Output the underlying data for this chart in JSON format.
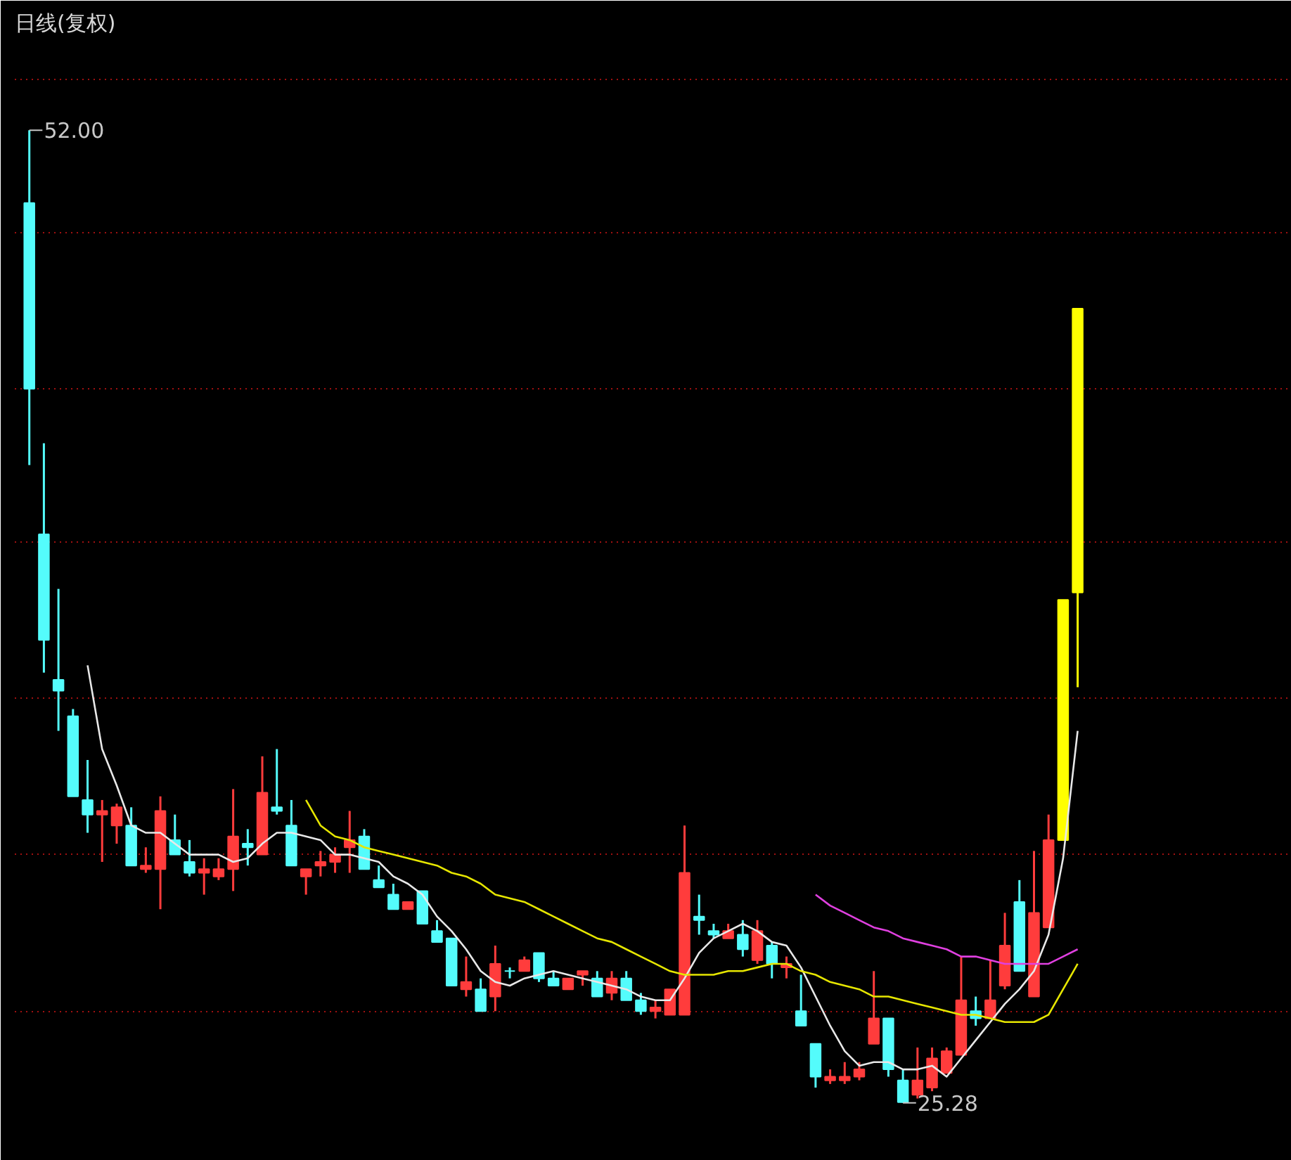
{
  "chart_data": {
    "type": "candlestick",
    "title": "日线(复权)",
    "categories": [
      null,
      null,
      null,
      null,
      null,
      null,
      null,
      null,
      null,
      null,
      null,
      null,
      null,
      null,
      null,
      null,
      null,
      null,
      null,
      null,
      null,
      null,
      null,
      null,
      null,
      null,
      null,
      null,
      null,
      null,
      null,
      null,
      null,
      null,
      null,
      null,
      null,
      null,
      null,
      null,
      null,
      null,
      null,
      null,
      null,
      null,
      null,
      null,
      null,
      null,
      null,
      null,
      null,
      null,
      null,
      null,
      null,
      null,
      null,
      null,
      null,
      null,
      null,
      null,
      null,
      null,
      null,
      null,
      null,
      null,
      null,
      null,
      null
    ],
    "ohlc": [
      [
        50.0,
        52.0,
        42.8,
        44.9
      ],
      [
        40.9,
        43.4,
        37.1,
        38.0
      ],
      [
        36.9,
        39.4,
        35.5,
        36.6
      ],
      [
        35.9,
        36.1,
        33.7,
        33.7
      ],
      [
        33.6,
        34.7,
        32.7,
        33.2
      ],
      [
        33.2,
        33.6,
        31.9,
        33.3
      ],
      [
        32.9,
        33.5,
        32.4,
        33.4
      ],
      [
        32.9,
        33.4,
        31.8,
        31.8
      ],
      [
        31.7,
        32.3,
        31.6,
        31.8
      ],
      [
        31.7,
        33.7,
        30.6,
        33.3
      ],
      [
        32.5,
        33.2,
        32.1,
        32.1
      ],
      [
        31.9,
        32.5,
        31.5,
        31.6
      ],
      [
        31.6,
        32.0,
        31.0,
        31.7
      ],
      [
        31.5,
        32.0,
        31.4,
        31.7
      ],
      [
        31.7,
        33.9,
        31.1,
        32.6
      ],
      [
        32.4,
        32.8,
        31.8,
        32.3
      ],
      [
        32.1,
        34.8,
        32.1,
        33.8
      ],
      [
        33.4,
        35.0,
        33.2,
        33.3
      ],
      [
        32.9,
        33.6,
        31.8,
        31.8
      ],
      [
        31.5,
        31.7,
        31.0,
        31.7
      ],
      [
        31.8,
        32.2,
        31.5,
        31.9
      ],
      [
        31.9,
        32.3,
        31.6,
        32.1
      ],
      [
        32.3,
        33.3,
        31.6,
        32.5
      ],
      [
        32.6,
        32.8,
        31.7,
        31.7
      ],
      [
        31.4,
        31.8,
        31.2,
        31.2
      ],
      [
        31.0,
        31.3,
        30.6,
        30.6
      ],
      [
        30.6,
        30.8,
        30.6,
        30.8
      ],
      [
        31.1,
        31.1,
        30.2,
        30.2
      ],
      [
        30.0,
        30.3,
        29.7,
        29.7
      ],
      [
        29.8,
        29.8,
        28.5,
        28.5
      ],
      [
        28.4,
        29.3,
        28.2,
        28.6
      ],
      [
        28.4,
        28.7,
        27.8,
        27.8
      ],
      [
        28.2,
        29.6,
        27.8,
        29.1
      ],
      [
        28.9,
        29.0,
        28.7,
        28.9
      ],
      [
        28.9,
        29.3,
        28.9,
        29.2
      ],
      [
        29.4,
        29.4,
        28.6,
        28.7
      ],
      [
        28.7,
        28.9,
        28.5,
        28.5
      ],
      [
        28.4,
        28.7,
        28.4,
        28.7
      ],
      [
        28.8,
        28.9,
        28.5,
        28.9
      ],
      [
        28.7,
        28.9,
        28.2,
        28.2
      ],
      [
        28.3,
        28.9,
        28.1,
        28.7
      ],
      [
        28.7,
        28.9,
        28.1,
        28.1
      ],
      [
        28.1,
        28.3,
        27.7,
        27.8
      ],
      [
        27.8,
        28.1,
        27.6,
        27.9
      ],
      [
        27.7,
        28.4,
        27.7,
        28.4
      ],
      [
        27.7,
        32.9,
        27.7,
        31.6
      ],
      [
        30.4,
        31.0,
        29.9,
        30.3
      ],
      [
        30.0,
        30.2,
        29.8,
        29.9
      ],
      [
        29.8,
        30.2,
        29.8,
        30.0
      ],
      [
        29.9,
        30.3,
        29.3,
        29.5
      ],
      [
        29.2,
        30.3,
        29.1,
        30.0
      ],
      [
        29.6,
        29.7,
        28.7,
        29.1
      ],
      [
        29.0,
        29.3,
        28.7,
        29.1
      ],
      [
        27.8,
        28.8,
        27.4,
        27.4
      ],
      [
        26.9,
        26.9,
        25.7,
        26.0
      ],
      [
        25.9,
        26.2,
        25.8,
        26.0
      ],
      [
        25.9,
        26.4,
        25.8,
        26.0
      ],
      [
        26.0,
        26.4,
        25.9,
        26.2
      ],
      [
        26.9,
        28.9,
        26.9,
        27.6
      ],
      [
        27.6,
        27.6,
        26.0,
        26.2
      ],
      [
        25.9,
        26.2,
        25.28,
        25.3
      ],
      [
        25.5,
        26.8,
        25.4,
        25.9
      ],
      [
        25.7,
        26.8,
        25.6,
        26.5
      ],
      [
        26.1,
        26.8,
        26.1,
        26.7
      ],
      [
        26.6,
        29.3,
        26.6,
        28.1
      ],
      [
        27.8,
        28.2,
        27.4,
        27.6
      ],
      [
        27.6,
        29.2,
        27.6,
        28.1
      ],
      [
        28.5,
        30.5,
        28.4,
        29.6
      ],
      [
        30.8,
        31.4,
        28.9,
        28.9
      ],
      [
        28.2,
        32.2,
        28.2,
        30.5
      ],
      [
        30.1,
        33.2,
        30.1,
        32.5
      ],
      [
        32.5,
        39.1,
        32.5,
        39.1
      ],
      [
        39.3,
        47.1,
        36.7,
        47.1
      ]
    ],
    "colors": [
      "#54fcfc",
      "#54fcfc",
      "#54fcfc",
      "#54fcfc",
      "#54fcfc",
      "#ff3c3c",
      "#ff3c3c",
      "#54fcfc",
      "#ff3c3c",
      "#ff3c3c",
      "#54fcfc",
      "#54fcfc",
      "#ff3c3c",
      "#ff3c3c",
      "#ff3c3c",
      "#54fcfc",
      "#ff3c3c",
      "#54fcfc",
      "#54fcfc",
      "#ff3c3c",
      "#ff3c3c",
      "#ff3c3c",
      "#ff3c3c",
      "#54fcfc",
      "#54fcfc",
      "#54fcfc",
      "#ff3c3c",
      "#54fcfc",
      "#54fcfc",
      "#54fcfc",
      "#ff3c3c",
      "#54fcfc",
      "#ff3c3c",
      "#54fcfc",
      "#ff3c3c",
      "#54fcfc",
      "#54fcfc",
      "#ff3c3c",
      "#ff3c3c",
      "#54fcfc",
      "#ff3c3c",
      "#54fcfc",
      "#54fcfc",
      "#ff3c3c",
      "#ff3c3c",
      "#ff3c3c",
      "#54fcfc",
      "#54fcfc",
      "#ff3c3c",
      "#54fcfc",
      "#ff3c3c",
      "#54fcfc",
      "#ff3c3c",
      "#54fcfc",
      "#54fcfc",
      "#ff3c3c",
      "#ff3c3c",
      "#ff3c3c",
      "#ff3c3c",
      "#54fcfc",
      "#54fcfc",
      "#ff3c3c",
      "#ff3c3c",
      "#ff3c3c",
      "#ff3c3c",
      "#54fcfc",
      "#ff3c3c",
      "#ff3c3c",
      "#54fcfc",
      "#ff3c3c",
      "#ff3c3c",
      "#ffff00",
      "#ffff00"
    ],
    "series": [
      {
        "type": "line",
        "color": "#e8e8e8",
        "values": [
          null,
          null,
          null,
          null,
          37.3,
          35.0,
          34.0,
          32.9,
          32.7,
          32.7,
          32.4,
          32.1,
          32.1,
          32.1,
          31.9,
          32.0,
          32.4,
          32.7,
          32.7,
          32.6,
          32.5,
          32.1,
          32.1,
          32.0,
          31.9,
          31.5,
          31.3,
          31.0,
          30.4,
          30.0,
          29.5,
          28.9,
          28.6,
          28.5,
          28.7,
          28.8,
          28.9,
          28.8,
          28.7,
          28.6,
          28.5,
          28.4,
          28.2,
          28.1,
          28.1,
          28.7,
          29.4,
          29.8,
          30.0,
          30.2,
          30.0,
          29.7,
          29.6,
          29.0,
          28.2,
          27.4,
          26.7,
          26.3,
          26.4,
          26.4,
          26.2,
          26.2,
          26.3,
          26.0,
          26.5,
          27.0,
          27.5,
          28.0,
          28.4,
          28.9,
          29.9,
          32.0,
          35.5
        ]
      },
      {
        "type": "line",
        "color": "#e6e600",
        "values": [
          null,
          null,
          null,
          null,
          null,
          null,
          null,
          null,
          null,
          null,
          null,
          null,
          null,
          null,
          null,
          null,
          null,
          null,
          null,
          33.6,
          32.9,
          32.6,
          32.5,
          32.3,
          32.2,
          32.1,
          32.0,
          31.9,
          31.8,
          31.6,
          31.5,
          31.3,
          31.0,
          30.9,
          30.8,
          30.6,
          30.4,
          30.2,
          30.0,
          29.8,
          29.7,
          29.5,
          29.3,
          29.1,
          28.9,
          28.8,
          28.8,
          28.8,
          28.9,
          28.9,
          29.0,
          29.1,
          29.1,
          28.9,
          28.8,
          28.6,
          28.5,
          28.4,
          28.2,
          28.2,
          28.1,
          28.0,
          27.9,
          27.8,
          27.7,
          27.7,
          27.6,
          27.5,
          27.5,
          27.5,
          27.7,
          28.4,
          29.1
        ]
      },
      {
        "type": "line",
        "color": "#e040e0",
        "values": [
          null,
          null,
          null,
          null,
          null,
          null,
          null,
          null,
          null,
          null,
          null,
          null,
          null,
          null,
          null,
          null,
          null,
          null,
          null,
          null,
          null,
          null,
          null,
          null,
          null,
          null,
          null,
          null,
          null,
          null,
          null,
          null,
          null,
          null,
          null,
          null,
          null,
          null,
          null,
          null,
          null,
          null,
          null,
          null,
          null,
          null,
          null,
          null,
          null,
          null,
          null,
          null,
          null,
          null,
          31.0,
          30.7,
          30.5,
          30.3,
          30.1,
          30.0,
          29.8,
          29.7,
          29.6,
          29.5,
          29.3,
          29.3,
          29.2,
          29.1,
          29.1,
          29.1,
          29.1,
          29.3,
          29.5
        ]
      }
    ],
    "annotations": [
      "52.00",
      "25.28"
    ],
    "ylim": [
      24.0,
      54.4
    ],
    "yticks": [
      {
        "value": 27.8,
        "label": null
      },
      {
        "value": 32.1,
        "label": null
      },
      {
        "value": 36.4,
        "label": null
      },
      {
        "value": 40.7,
        "label": null
      },
      {
        "value": 44.9,
        "label": null
      },
      {
        "value": 49.2,
        "label": null
      },
      {
        "value": 53.4,
        "label": null
      }
    ],
    "grid": "y",
    "tick_labels": false,
    "line_style": "solid",
    "marker": "none"
  }
}
